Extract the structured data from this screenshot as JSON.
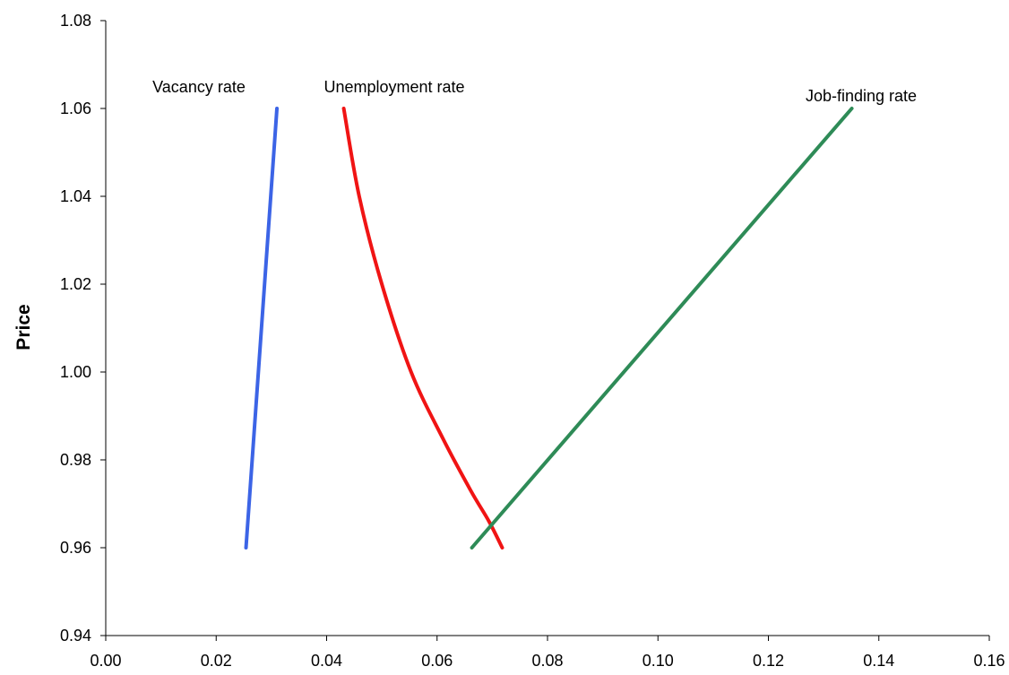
{
  "chart_data": {
    "type": "line",
    "title": "",
    "xlabel": "",
    "ylabel": "Price",
    "xlim": [
      0.0,
      0.16
    ],
    "ylim": [
      0.94,
      1.08
    ],
    "x_ticks": [
      "0.00",
      "0.02",
      "0.04",
      "0.06",
      "0.08",
      "0.10",
      "0.12",
      "0.14",
      "0.16"
    ],
    "y_ticks": [
      "0.94",
      "0.96",
      "0.98",
      "1.00",
      "1.02",
      "1.04",
      "1.06",
      "1.08"
    ],
    "grid": false,
    "legend": "none",
    "series": [
      {
        "name": "Vacancy rate",
        "color": "#3C64E6",
        "points": [
          [
            0.0254,
            0.96
          ],
          [
            0.0282,
            1.01
          ],
          [
            0.031,
            1.06
          ]
        ]
      },
      {
        "name": "Unemployment rate",
        "color": "#F01414",
        "points": [
          [
            0.0431,
            1.06
          ],
          [
            0.0459,
            1.04
          ],
          [
            0.05,
            1.02
          ],
          [
            0.0553,
            1.0
          ],
          [
            0.061,
            0.985
          ],
          [
            0.0661,
            0.973
          ],
          [
            0.0694,
            0.966
          ],
          [
            0.0718,
            0.96
          ]
        ]
      },
      {
        "name": "Job-finding rate",
        "color": "#2E8B57",
        "points": [
          [
            0.0663,
            0.96
          ],
          [
            0.1351,
            1.06
          ]
        ]
      }
    ]
  }
}
